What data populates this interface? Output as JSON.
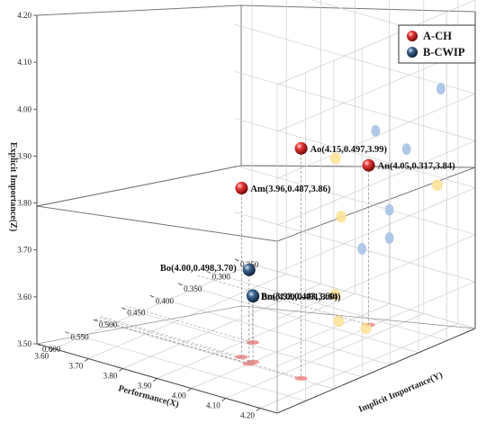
{
  "chart_data": {
    "type": "scatter3d",
    "xlabel": "Performance(X)",
    "ylabel": "Implicit Importance(Y)",
    "zlabel": "Explicit Importance(Z)",
    "x_ticks": [
      "3.60",
      "3.70",
      "3.80",
      "3.90",
      "4.00",
      "4.10",
      "4.20"
    ],
    "y_ticks": [
      "0.250",
      "0.300",
      "0.350",
      "0.400",
      "0.450",
      "0.500",
      "0.550",
      "0.600"
    ],
    "z_ticks": [
      "3.50",
      "3.60",
      "3.70",
      "3.80",
      "3.90",
      "4.00",
      "4.10",
      "4.20"
    ],
    "xlim": [
      3.55,
      4.25
    ],
    "ylim": [
      0.25,
      0.6
    ],
    "zlim": [
      3.5,
      4.2
    ],
    "grid": true,
    "legend_position": "top-right",
    "series": [
      {
        "name": "A-CH",
        "color": "#d42020",
        "points": [
          {
            "label": "Ao(4.15,0.497,3.99)",
            "x": 4.15,
            "y": 0.497,
            "z": 3.99
          },
          {
            "label": "An(4.05,0.317,3.84)",
            "x": 4.05,
            "y": 0.317,
            "z": 3.84
          },
          {
            "label": "Am(3.96,0.487,3.86)",
            "x": 3.96,
            "y": 0.487,
            "z": 3.86
          }
        ]
      },
      {
        "name": "B-CWIP",
        "color": "#2e4f73",
        "points": [
          {
            "label": "Bn(3.92,0.443,3.60)",
            "x": 3.92,
            "y": 0.443,
            "z": 3.6
          },
          {
            "label": "Bm(4.00,0.491,3.64)",
            "x": 4.0,
            "y": 0.491,
            "z": 3.64
          },
          {
            "label": "Bo(4.00,0.498,3.70)",
            "x": 4.0,
            "y": 0.498,
            "z": 3.7
          }
        ]
      }
    ]
  }
}
